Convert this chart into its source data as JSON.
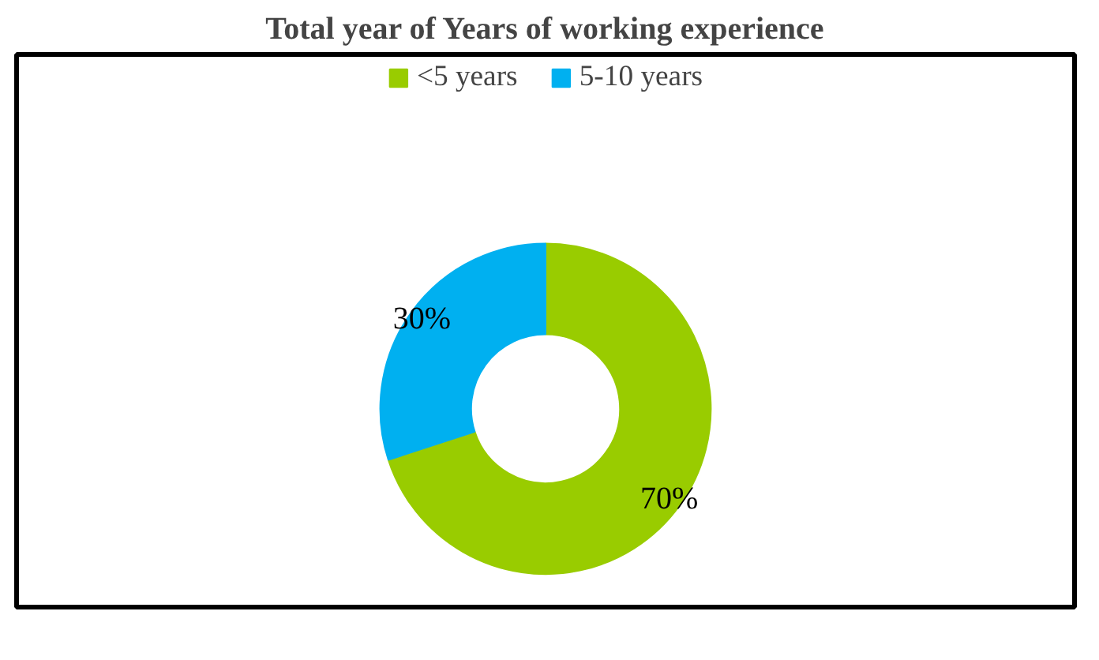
{
  "chart_data": {
    "type": "donut",
    "title": "Total year of Years of working experience",
    "categories": [
      "<5 years",
      "5-10 years"
    ],
    "values": [
      70,
      30
    ],
    "colors": [
      "#99cc00",
      "#00b0f0"
    ],
    "value_labels": [
      "70%",
      "30%"
    ],
    "legend": "top"
  }
}
